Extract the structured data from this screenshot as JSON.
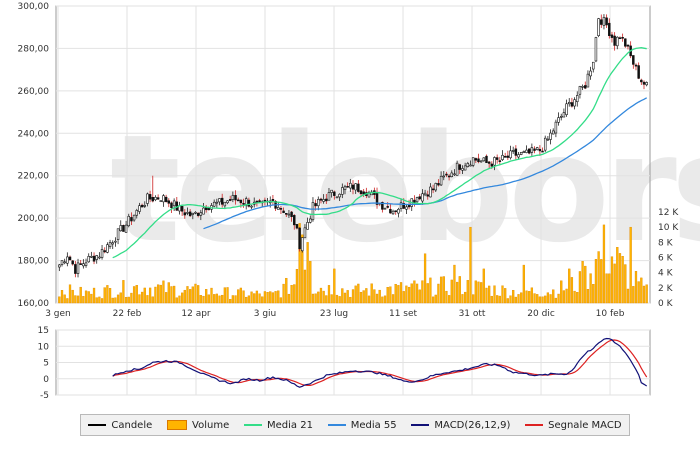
{
  "watermark": "teleborsa",
  "chart_data": [
    {
      "type": "candlestick",
      "y_ticks": [
        "300,00",
        "280,00",
        "260,00",
        "240,00",
        "220,00",
        "200,00",
        "180,00",
        "160,00"
      ],
      "ylim": [
        160,
        300
      ],
      "x_ticks": [
        "3 gen",
        "22 feb",
        "12 apr",
        "3 giu",
        "23 lug",
        "11 set",
        "31 ott",
        "20 dic",
        "10 feb"
      ],
      "price_keypoints": [
        [
          0,
          178
        ],
        [
          3,
          183
        ],
        [
          6,
          176
        ],
        [
          10,
          180
        ],
        [
          15,
          183
        ],
        [
          20,
          190
        ],
        [
          25,
          197
        ],
        [
          30,
          205
        ],
        [
          33,
          209
        ],
        [
          38,
          210
        ],
        [
          42,
          207
        ],
        [
          45,
          204
        ],
        [
          50,
          201
        ],
        [
          55,
          206
        ],
        [
          60,
          207
        ],
        [
          65,
          209
        ],
        [
          70,
          208
        ],
        [
          75,
          205
        ],
        [
          80,
          208
        ],
        [
          84,
          204
        ],
        [
          88,
          198
        ],
        [
          90,
          188
        ],
        [
          92,
          195
        ],
        [
          95,
          205
        ],
        [
          100,
          210
        ],
        [
          105,
          213
        ],
        [
          110,
          215
        ],
        [
          115,
          213
        ],
        [
          120,
          207
        ],
        [
          125,
          204
        ],
        [
          130,
          207
        ],
        [
          135,
          211
        ],
        [
          140,
          214
        ],
        [
          145,
          220
        ],
        [
          150,
          225
        ],
        [
          155,
          228
        ],
        [
          160,
          226
        ],
        [
          165,
          227
        ],
        [
          170,
          230
        ],
        [
          175,
          230
        ],
        [
          180,
          232
        ],
        [
          183,
          237
        ],
        [
          186,
          244
        ],
        [
          190,
          252
        ],
        [
          194,
          258
        ],
        [
          197,
          263
        ],
        [
          200,
          275
        ],
        [
          202,
          295
        ],
        [
          205,
          291
        ],
        [
          208,
          283
        ],
        [
          210,
          286
        ],
        [
          212,
          282
        ],
        [
          214,
          276
        ],
        [
          216,
          270
        ],
        [
          218,
          265
        ],
        [
          220,
          262
        ]
      ],
      "volume_keypoints": [
        [
          0,
          1.6
        ],
        [
          10,
          1.2
        ],
        [
          30,
          2.0
        ],
        [
          60,
          1.3
        ],
        [
          80,
          1.0
        ],
        [
          88,
          2.5
        ],
        [
          90,
          7.5
        ],
        [
          92,
          6.0
        ],
        [
          95,
          2.0
        ],
        [
          110,
          1.5
        ],
        [
          130,
          1.8
        ],
        [
          150,
          2.2
        ],
        [
          170,
          1.4
        ],
        [
          185,
          1.5
        ],
        [
          195,
          2.5
        ],
        [
          200,
          4.5
        ],
        [
          204,
          6.5
        ],
        [
          208,
          5.5
        ],
        [
          213,
          3.5
        ],
        [
          218,
          2.0
        ],
        [
          220,
          1.5
        ]
      ],
      "volume_spikes": [
        [
          90,
          10.5
        ],
        [
          91,
          9.0
        ],
        [
          93,
          8.0
        ],
        [
          94,
          5.5
        ],
        [
          103,
          4.5
        ],
        [
          137,
          6.5
        ],
        [
          148,
          5.0
        ],
        [
          154,
          10.0
        ],
        [
          159,
          4.5
        ],
        [
          174,
          5.0
        ],
        [
          191,
          4.5
        ],
        [
          196,
          5.5
        ],
        [
          204,
          10.3
        ],
        [
          214,
          10.0
        ]
      ],
      "wick_spike": {
        "index": 35,
        "high": 220
      },
      "volume_ticks": [
        "12 K",
        "10 K",
        "8 K",
        "6 K",
        "4 K",
        "2 K",
        "0 K"
      ],
      "volume_max": 12,
      "series": [
        {
          "name": "Candele",
          "color": "#000000"
        },
        {
          "name": "Volume",
          "color": "#ffb400"
        },
        {
          "name": "Media 21",
          "color": "#33dd88"
        },
        {
          "name": "Media 55",
          "color": "#3388dd"
        }
      ]
    },
    {
      "type": "line",
      "y_ticks": [
        "15",
        "10",
        "5",
        "0",
        "-5"
      ],
      "ylim": [
        -5,
        15
      ],
      "macd_keypoints": [
        [
          20,
          1
        ],
        [
          25,
          2.5
        ],
        [
          30,
          3
        ],
        [
          35,
          5
        ],
        [
          40,
          5.5
        ],
        [
          45,
          5
        ],
        [
          50,
          3
        ],
        [
          55,
          1
        ],
        [
          60,
          -0.5
        ],
        [
          65,
          -1.5
        ],
        [
          70,
          0
        ],
        [
          75,
          -0.5
        ],
        [
          80,
          0.5
        ],
        [
          85,
          -0.5
        ],
        [
          90,
          -2.5
        ],
        [
          95,
          -1
        ],
        [
          100,
          1
        ],
        [
          110,
          2.5
        ],
        [
          118,
          2
        ],
        [
          125,
          0.5
        ],
        [
          130,
          -1
        ],
        [
          135,
          -0.5
        ],
        [
          140,
          1
        ],
        [
          145,
          2
        ],
        [
          150,
          2.5
        ],
        [
          155,
          3.5
        ],
        [
          160,
          4.5
        ],
        [
          165,
          4
        ],
        [
          170,
          2
        ],
        [
          175,
          1.5
        ],
        [
          180,
          1
        ],
        [
          185,
          1.5
        ],
        [
          190,
          1.5
        ],
        [
          192,
          2.5
        ],
        [
          195,
          6
        ],
        [
          198,
          8.5
        ],
        [
          200,
          9
        ],
        [
          202,
          11
        ],
        [
          205,
          12.5
        ],
        [
          207,
          12
        ],
        [
          210,
          10
        ],
        [
          213,
          7
        ],
        [
          216,
          3
        ],
        [
          218,
          -1
        ],
        [
          220,
          -2.5
        ]
      ],
      "series": [
        {
          "name": "MACD(26,12,9)",
          "color": "#111177"
        },
        {
          "name": "Segnale MACD",
          "color": "#dd2222"
        }
      ]
    }
  ]
}
